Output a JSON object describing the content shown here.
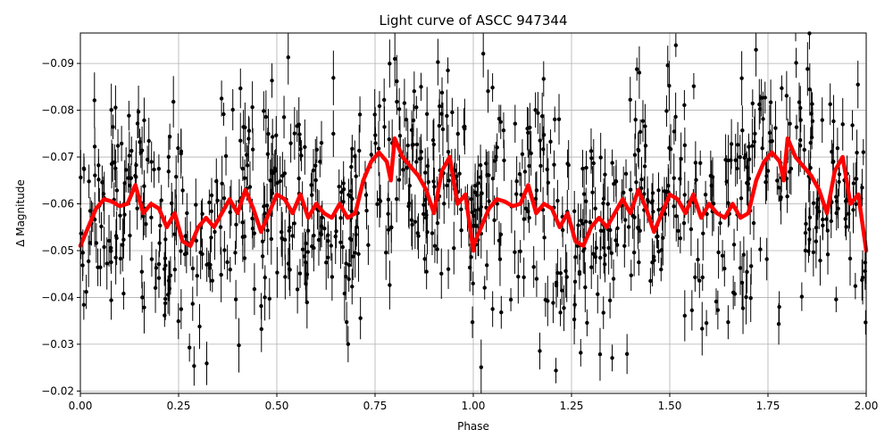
{
  "chart_data": {
    "type": "scatter",
    "title": "Light curve of ASCC 947344",
    "xlabel": "Phase",
    "ylabel": "Δ Magnitude",
    "xlim": [
      0.0,
      2.0
    ],
    "ylim": [
      -0.0195,
      -0.0965
    ],
    "y_inverted": true,
    "grid": true,
    "x_ticks": [
      "0.00",
      "0.25",
      "0.50",
      "0.75",
      "1.00",
      "1.25",
      "1.50",
      "1.75",
      "2.00"
    ],
    "y_ticks": [
      "−0.09",
      "−0.08",
      "−0.07",
      "−0.06",
      "−0.05",
      "−0.04",
      "−0.03",
      "−0.02"
    ],
    "colors": {
      "points": "#000000",
      "fit": "#ff0000",
      "grid": "#b0b0b0"
    },
    "scatter_summary": {
      "n_points": 900,
      "center": -0.058,
      "spread": 0.012,
      "typical_error": 0.004
    },
    "fit_curve": {
      "phase": [
        0.0,
        0.02,
        0.04,
        0.06,
        0.08,
        0.1,
        0.12,
        0.14,
        0.16,
        0.18,
        0.2,
        0.22,
        0.24,
        0.26,
        0.28,
        0.3,
        0.32,
        0.34,
        0.36,
        0.38,
        0.4,
        0.42,
        0.44,
        0.46,
        0.48,
        0.5,
        0.52,
        0.54,
        0.56,
        0.58,
        0.6,
        0.62,
        0.64,
        0.66,
        0.68,
        0.7,
        0.72,
        0.74,
        0.76,
        0.78,
        0.79,
        0.8,
        0.82,
        0.84,
        0.86,
        0.88,
        0.9,
        0.92,
        0.94,
        0.96,
        0.98,
        1.0
      ],
      "dmag": [
        -0.051,
        -0.055,
        -0.059,
        -0.061,
        -0.0605,
        -0.0595,
        -0.06,
        -0.064,
        -0.058,
        -0.06,
        -0.059,
        -0.055,
        -0.058,
        -0.052,
        -0.051,
        -0.055,
        -0.057,
        -0.055,
        -0.058,
        -0.061,
        -0.058,
        -0.063,
        -0.059,
        -0.054,
        -0.058,
        -0.062,
        -0.061,
        -0.058,
        -0.062,
        -0.057,
        -0.06,
        -0.058,
        -0.057,
        -0.06,
        -0.057,
        -0.058,
        -0.065,
        -0.069,
        -0.071,
        -0.069,
        -0.065,
        -0.074,
        -0.07,
        -0.068,
        -0.066,
        -0.063,
        -0.058,
        -0.067,
        -0.07,
        -0.06,
        -0.062,
        -0.05
      ]
    }
  }
}
